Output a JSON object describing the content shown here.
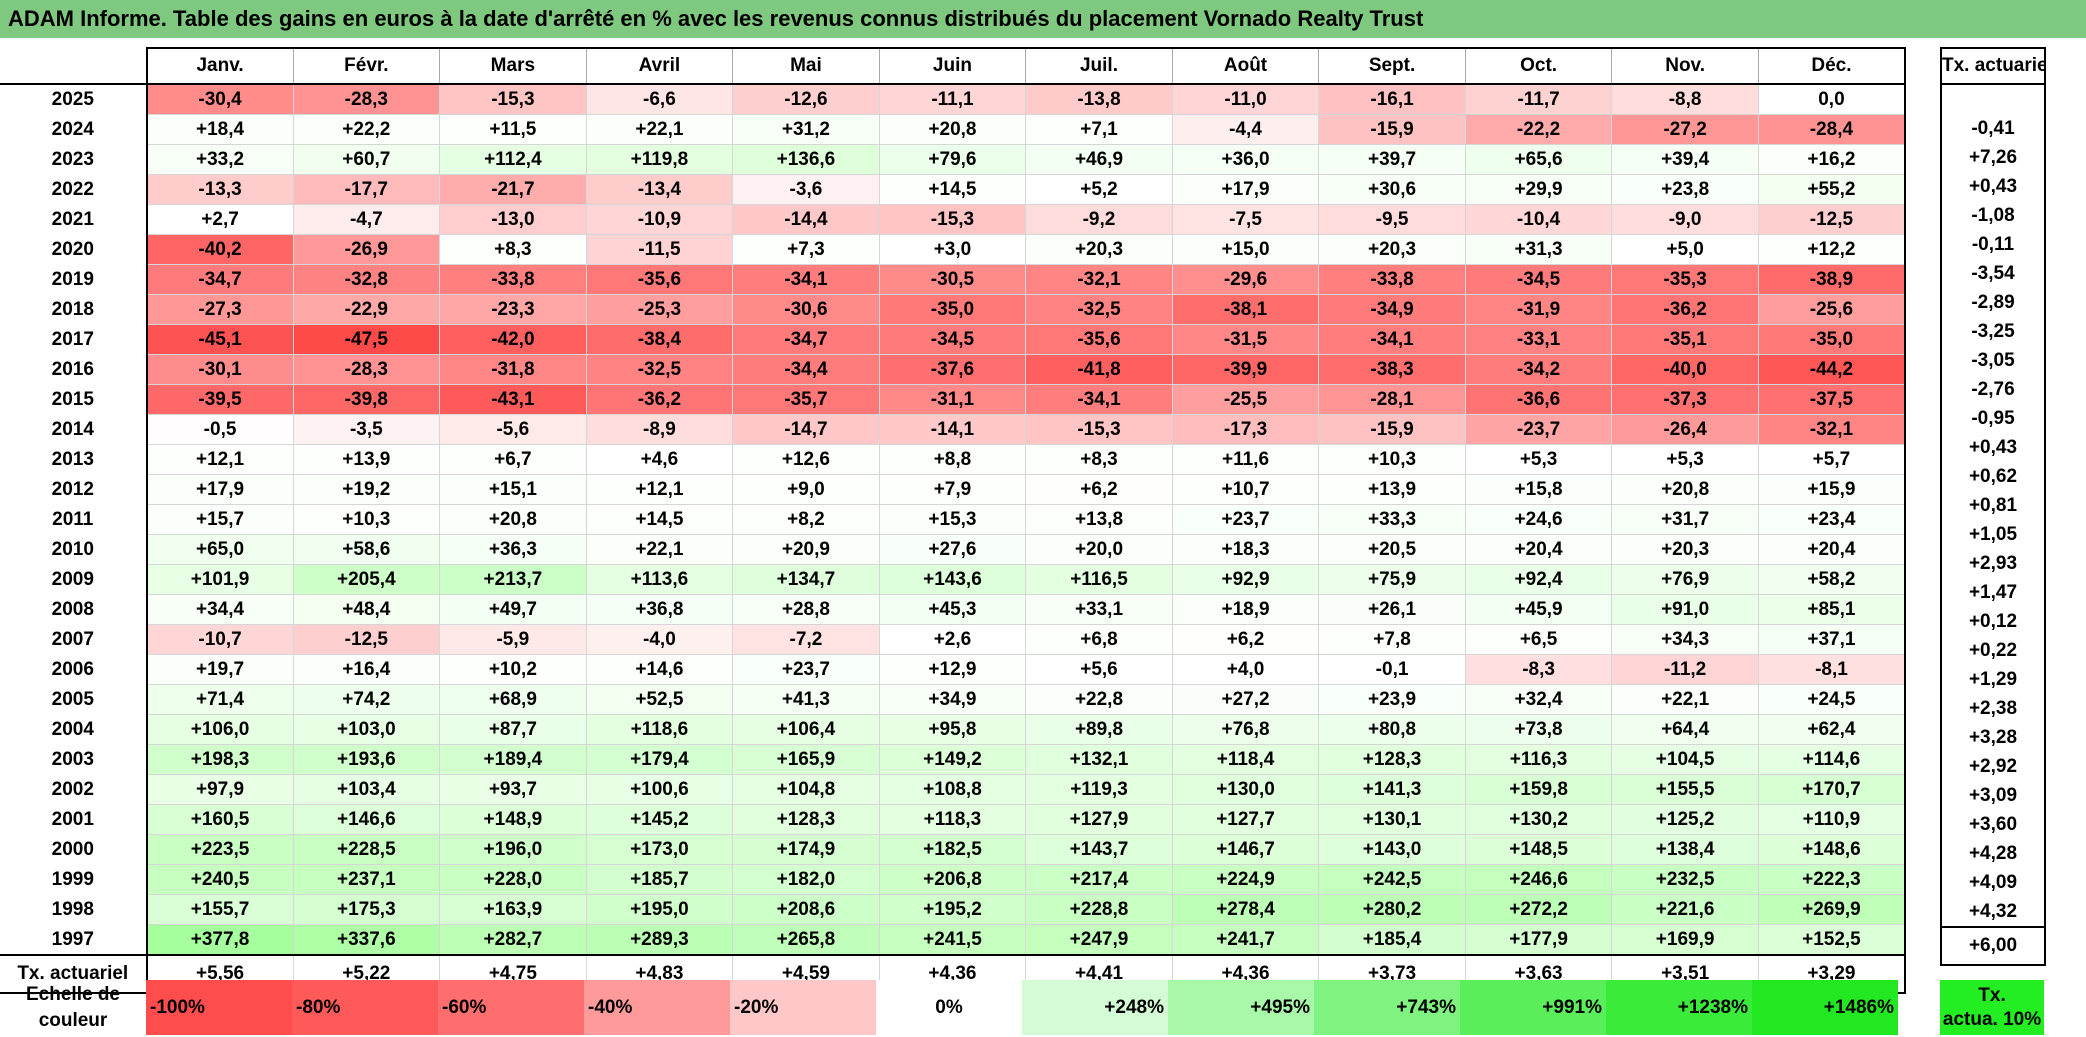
{
  "title": "ADAM Informe. Table des gains en euros à la date d'arrêté en % avec les revenus connus distribués du placement Vornado Realty Trust",
  "months": [
    "Janv.",
    "Févr.",
    "Mars",
    "Avril",
    "Mai",
    "Juin",
    "Juil.",
    "Août",
    "Sept.",
    "Oct.",
    "Nov.",
    "Déc."
  ],
  "side_header": "Tx. actuariel",
  "rows": [
    {
      "year": "2025",
      "values": [
        "-30,4",
        "-28,3",
        "-15,3",
        "-6,6",
        "-12,6",
        "-11,1",
        "-13,8",
        "-11,0",
        "-16,1",
        "-11,7",
        "-8,8",
        "0,0"
      ],
      "tx": ""
    },
    {
      "year": "2024",
      "values": [
        "+18,4",
        "+22,2",
        "+11,5",
        "+22,1",
        "+31,2",
        "+20,8",
        "+7,1",
        "-4,4",
        "-15,9",
        "-22,2",
        "-27,2",
        "-28,4"
      ],
      "tx": "-0,41"
    },
    {
      "year": "2023",
      "values": [
        "+33,2",
        "+60,7",
        "+112,4",
        "+119,8",
        "+136,6",
        "+79,6",
        "+46,9",
        "+36,0",
        "+39,7",
        "+65,6",
        "+39,4",
        "+16,2"
      ],
      "tx": "+7,26"
    },
    {
      "year": "2022",
      "values": [
        "-13,3",
        "-17,7",
        "-21,7",
        "-13,4",
        "-3,6",
        "+14,5",
        "+5,2",
        "+17,9",
        "+30,6",
        "+29,9",
        "+23,8",
        "+55,2"
      ],
      "tx": "+0,43"
    },
    {
      "year": "2021",
      "values": [
        "+2,7",
        "-4,7",
        "-13,0",
        "-10,9",
        "-14,4",
        "-15,3",
        "-9,2",
        "-7,5",
        "-9,5",
        "-10,4",
        "-9,0",
        "-12,5"
      ],
      "tx": "-1,08"
    },
    {
      "year": "2020",
      "values": [
        "-40,2",
        "-26,9",
        "+8,3",
        "-11,5",
        "+7,3",
        "+3,0",
        "+20,3",
        "+15,0",
        "+20,3",
        "+31,3",
        "+5,0",
        "+12,2"
      ],
      "tx": "-0,11"
    },
    {
      "year": "2019",
      "values": [
        "-34,7",
        "-32,8",
        "-33,8",
        "-35,6",
        "-34,1",
        "-30,5",
        "-32,1",
        "-29,6",
        "-33,8",
        "-34,5",
        "-35,3",
        "-38,9"
      ],
      "tx": "-3,54"
    },
    {
      "year": "2018",
      "values": [
        "-27,3",
        "-22,9",
        "-23,3",
        "-25,3",
        "-30,6",
        "-35,0",
        "-32,5",
        "-38,1",
        "-34,9",
        "-31,9",
        "-36,2",
        "-25,6"
      ],
      "tx": "-2,89"
    },
    {
      "year": "2017",
      "values": [
        "-45,1",
        "-47,5",
        "-42,0",
        "-38,4",
        "-34,7",
        "-34,5",
        "-35,6",
        "-31,5",
        "-34,1",
        "-33,1",
        "-35,1",
        "-35,0"
      ],
      "tx": "-3,25"
    },
    {
      "year": "2016",
      "values": [
        "-30,1",
        "-28,3",
        "-31,8",
        "-32,5",
        "-34,4",
        "-37,6",
        "-41,8",
        "-39,9",
        "-38,3",
        "-34,2",
        "-40,0",
        "-44,2"
      ],
      "tx": "-3,05"
    },
    {
      "year": "2015",
      "values": [
        "-39,5",
        "-39,8",
        "-43,1",
        "-36,2",
        "-35,7",
        "-31,1",
        "-34,1",
        "-25,5",
        "-28,1",
        "-36,6",
        "-37,3",
        "-37,5"
      ],
      "tx": "-2,76"
    },
    {
      "year": "2014",
      "values": [
        "-0,5",
        "-3,5",
        "-5,6",
        "-8,9",
        "-14,7",
        "-14,1",
        "-15,3",
        "-17,3",
        "-15,9",
        "-23,7",
        "-26,4",
        "-32,1"
      ],
      "tx": "-0,95"
    },
    {
      "year": "2013",
      "values": [
        "+12,1",
        "+13,9",
        "+6,7",
        "+4,6",
        "+12,6",
        "+8,8",
        "+8,3",
        "+11,6",
        "+10,3",
        "+5,3",
        "+5,3",
        "+5,7"
      ],
      "tx": "+0,43"
    },
    {
      "year": "2012",
      "values": [
        "+17,9",
        "+19,2",
        "+15,1",
        "+12,1",
        "+9,0",
        "+7,9",
        "+6,2",
        "+10,7",
        "+13,9",
        "+15,8",
        "+20,8",
        "+15,9"
      ],
      "tx": "+0,62"
    },
    {
      "year": "2011",
      "values": [
        "+15,7",
        "+10,3",
        "+20,8",
        "+14,5",
        "+8,2",
        "+15,3",
        "+13,8",
        "+23,7",
        "+33,3",
        "+24,6",
        "+31,7",
        "+23,4"
      ],
      "tx": "+0,81"
    },
    {
      "year": "2010",
      "values": [
        "+65,0",
        "+58,6",
        "+36,3",
        "+22,1",
        "+20,9",
        "+27,6",
        "+20,0",
        "+18,3",
        "+20,5",
        "+20,4",
        "+20,3",
        "+20,4"
      ],
      "tx": "+1,05"
    },
    {
      "year": "2009",
      "values": [
        "+101,9",
        "+205,4",
        "+213,7",
        "+113,6",
        "+134,7",
        "+143,6",
        "+116,5",
        "+92,9",
        "+75,9",
        "+92,4",
        "+76,9",
        "+58,2"
      ],
      "tx": "+2,93"
    },
    {
      "year": "2008",
      "values": [
        "+34,4",
        "+48,4",
        "+49,7",
        "+36,8",
        "+28,8",
        "+45,3",
        "+33,1",
        "+18,9",
        "+26,1",
        "+45,9",
        "+91,0",
        "+85,1"
      ],
      "tx": "+1,47"
    },
    {
      "year": "2007",
      "values": [
        "-10,7",
        "-12,5",
        "-5,9",
        "-4,0",
        "-7,2",
        "+2,6",
        "+6,8",
        "+6,2",
        "+7,8",
        "+6,5",
        "+34,3",
        "+37,1"
      ],
      "tx": "+0,12"
    },
    {
      "year": "2006",
      "values": [
        "+19,7",
        "+16,4",
        "+10,2",
        "+14,6",
        "+23,7",
        "+12,9",
        "+5,6",
        "+4,0",
        "-0,1",
        "-8,3",
        "-11,2",
        "-8,1"
      ],
      "tx": "+0,22"
    },
    {
      "year": "2005",
      "values": [
        "+71,4",
        "+74,2",
        "+68,9",
        "+52,5",
        "+41,3",
        "+34,9",
        "+22,8",
        "+27,2",
        "+23,9",
        "+32,4",
        "+22,1",
        "+24,5"
      ],
      "tx": "+1,29"
    },
    {
      "year": "2004",
      "values": [
        "+106,0",
        "+103,0",
        "+87,7",
        "+118,6",
        "+106,4",
        "+95,8",
        "+89,8",
        "+76,8",
        "+80,8",
        "+73,8",
        "+64,4",
        "+62,4"
      ],
      "tx": "+2,38"
    },
    {
      "year": "2003",
      "values": [
        "+198,3",
        "+193,6",
        "+189,4",
        "+179,4",
        "+165,9",
        "+149,2",
        "+132,1",
        "+118,4",
        "+128,3",
        "+116,3",
        "+104,5",
        "+114,6"
      ],
      "tx": "+3,28"
    },
    {
      "year": "2002",
      "values": [
        "+97,9",
        "+103,4",
        "+93,7",
        "+100,6",
        "+104,8",
        "+108,8",
        "+119,3",
        "+130,0",
        "+141,3",
        "+159,8",
        "+155,5",
        "+170,7"
      ],
      "tx": "+2,92"
    },
    {
      "year": "2001",
      "values": [
        "+160,5",
        "+146,6",
        "+148,9",
        "+145,2",
        "+128,3",
        "+118,3",
        "+127,9",
        "+127,7",
        "+130,1",
        "+130,2",
        "+125,2",
        "+110,9"
      ],
      "tx": "+3,09"
    },
    {
      "year": "2000",
      "values": [
        "+223,5",
        "+228,5",
        "+196,0",
        "+173,0",
        "+174,9",
        "+182,5",
        "+143,7",
        "+146,7",
        "+143,0",
        "+148,5",
        "+138,4",
        "+148,6"
      ],
      "tx": "+3,60"
    },
    {
      "year": "1999",
      "values": [
        "+240,5",
        "+237,1",
        "+228,0",
        "+185,7",
        "+182,0",
        "+206,8",
        "+217,4",
        "+224,9",
        "+242,5",
        "+246,6",
        "+232,5",
        "+222,3"
      ],
      "tx": "+4,28"
    },
    {
      "year": "1998",
      "values": [
        "+155,7",
        "+175,3",
        "+163,9",
        "+195,0",
        "+208,6",
        "+195,2",
        "+228,8",
        "+278,4",
        "+280,2",
        "+272,2",
        "+221,6",
        "+269,9"
      ],
      "tx": "+4,09"
    },
    {
      "year": "1997",
      "values": [
        "+377,8",
        "+337,6",
        "+282,7",
        "+289,3",
        "+265,8",
        "+241,5",
        "+247,9",
        "+241,7",
        "+185,4",
        "+177,9",
        "+169,9",
        "+152,5"
      ],
      "tx": "+4,32"
    }
  ],
  "totals": {
    "label": "Tx. actuariel",
    "values": [
      "+5,56",
      "+5,22",
      "+4,75",
      "+4,83",
      "+4,59",
      "+4,36",
      "+4,41",
      "+4,36",
      "+3,73",
      "+3,63",
      "+3,51",
      "+3,29"
    ],
    "tx": "+6,00"
  },
  "legend": {
    "label_line1": "Echelle de",
    "label_line2": "couleur",
    "cells": [
      {
        "text": "-100%",
        "color": "#ff4d4d",
        "kind": "neg"
      },
      {
        "text": "-80%",
        "color": "#ff5a5a",
        "kind": "neg"
      },
      {
        "text": "-60%",
        "color": "#ff6e6e",
        "kind": "neg"
      },
      {
        "text": "-40%",
        "color": "#ff9a9a",
        "kind": "neg"
      },
      {
        "text": "-20%",
        "color": "#ffc8c8",
        "kind": "neg"
      },
      {
        "text": "0%",
        "color": "#ffffff",
        "kind": "zero"
      },
      {
        "text": "+248%",
        "color": "#d4fcd4",
        "kind": "pos"
      },
      {
        "text": "+495%",
        "color": "#a9f7a9",
        "kind": "pos"
      },
      {
        "text": "+743%",
        "color": "#80f280",
        "kind": "pos"
      },
      {
        "text": "+991%",
        "color": "#5aee5a",
        "kind": "pos"
      },
      {
        "text": "+1238%",
        "color": "#3aeb3a",
        "kind": "pos"
      },
      {
        "text": "+1486%",
        "color": "#22e822",
        "kind": "pos"
      }
    ],
    "tx_line1": "Tx.",
    "tx_line2": "actua. 10%",
    "tx_color": "#22ee22"
  },
  "colors": {
    "title_bg": "#7fc87f"
  }
}
